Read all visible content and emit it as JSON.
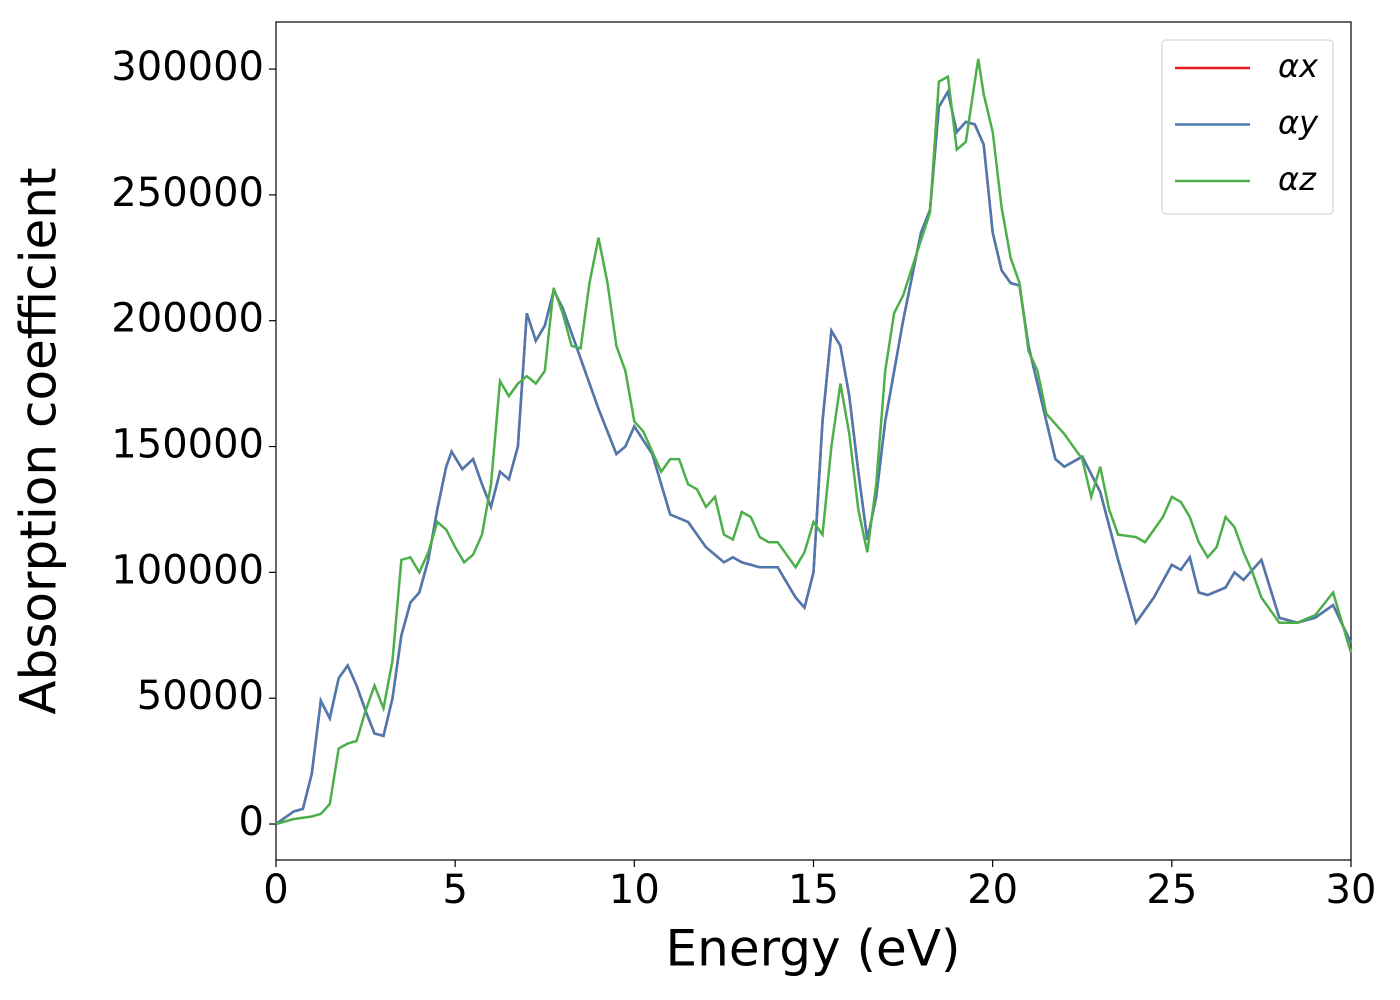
{
  "chart_data": {
    "type": "line",
    "xlabel": "Energy (eV)",
    "ylabel": "Absorption coefficient",
    "xlim": [
      0,
      30
    ],
    "xticks": [
      0,
      5,
      10,
      15,
      20,
      25,
      30
    ],
    "ylim": [
      -14300,
      318700
    ],
    "yticks": [
      0,
      50000,
      100000,
      150000,
      200000,
      250000,
      300000
    ],
    "legend": "upper right",
    "series": [
      {
        "name": "αx",
        "color": "#e41a1c",
        "x": [
          0,
          0.5,
          0.75,
          1.0,
          1.25,
          1.5,
          1.75,
          2.0,
          2.25,
          2.5,
          2.75,
          3.0,
          3.25,
          3.5,
          3.75,
          4.0,
          4.25,
          4.5,
          4.75,
          4.9,
          5.2,
          5.5,
          5.75,
          6.0,
          6.25,
          6.5,
          6.75,
          7.0,
          7.25,
          7.5,
          7.75,
          8.0,
          8.5,
          8.75,
          9.0,
          9.5,
          9.75,
          10.0,
          10.5,
          11.0,
          11.5,
          12.0,
          12.5,
          12.75,
          13.0,
          13.5,
          14.0,
          14.5,
          14.75,
          15.0,
          15.25,
          15.5,
          15.75,
          16.0,
          16.25,
          16.5,
          16.75,
          17.0,
          17.5,
          18.0,
          18.25,
          18.5,
          18.75,
          19.0,
          19.25,
          19.5,
          19.75,
          20.0,
          20.25,
          20.5,
          20.75,
          21.0,
          21.5,
          21.75,
          22.0,
          22.5,
          23.0,
          23.5,
          24.0,
          24.5,
          25.0,
          25.25,
          25.5,
          25.75,
          26.0,
          26.5,
          26.75,
          27.0,
          27.5,
          28.0,
          28.5,
          29.0,
          29.5,
          30.0
        ],
        "values": [
          0,
          5000,
          6000,
          20000,
          49000,
          42000,
          58000,
          63000,
          55000,
          45000,
          36000,
          35000,
          50000,
          75000,
          88000,
          92000,
          105000,
          125000,
          142000,
          148000,
          141000,
          145000,
          135000,
          126000,
          140000,
          137000,
          150000,
          203000,
          192000,
          198000,
          212000,
          205000,
          185000,
          175000,
          165000,
          147000,
          150000,
          158000,
          147000,
          123000,
          120000,
          110000,
          104000,
          106000,
          104000,
          102000,
          102000,
          90000,
          86000,
          100000,
          160000,
          196000,
          190000,
          170000,
          140000,
          113000,
          130000,
          160000,
          200000,
          235000,
          244000,
          285000,
          291000,
          275000,
          279000,
          278000,
          270000,
          235000,
          220000,
          215000,
          214000,
          190000,
          160000,
          145000,
          142000,
          146000,
          132000,
          105000,
          80000,
          90000,
          103000,
          101000,
          106000,
          92000,
          91000,
          94000,
          100000,
          97000,
          105000,
          82000,
          80000,
          82000,
          87000,
          72000
        ]
      },
      {
        "name": "αy",
        "color": "#4a7ab0",
        "x": [
          0,
          0.5,
          0.75,
          1.0,
          1.25,
          1.5,
          1.75,
          2.0,
          2.25,
          2.5,
          2.75,
          3.0,
          3.25,
          3.5,
          3.75,
          4.0,
          4.25,
          4.5,
          4.75,
          4.9,
          5.2,
          5.5,
          5.75,
          6.0,
          6.25,
          6.5,
          6.75,
          7.0,
          7.25,
          7.5,
          7.75,
          8.0,
          8.5,
          8.75,
          9.0,
          9.5,
          9.75,
          10.0,
          10.5,
          11.0,
          11.5,
          12.0,
          12.5,
          12.75,
          13.0,
          13.5,
          14.0,
          14.5,
          14.75,
          15.0,
          15.25,
          15.5,
          15.75,
          16.0,
          16.25,
          16.5,
          16.75,
          17.0,
          17.5,
          18.0,
          18.25,
          18.5,
          18.75,
          19.0,
          19.25,
          19.5,
          19.75,
          20.0,
          20.25,
          20.5,
          20.75,
          21.0,
          21.5,
          21.75,
          22.0,
          22.5,
          23.0,
          23.5,
          24.0,
          24.5,
          25.0,
          25.25,
          25.5,
          25.75,
          26.0,
          26.5,
          26.75,
          27.0,
          27.5,
          28.0,
          28.5,
          29.0,
          29.5,
          30.0
        ],
        "values": [
          0,
          5000,
          6000,
          20000,
          49000,
          42000,
          58000,
          63000,
          55000,
          45000,
          36000,
          35000,
          50000,
          75000,
          88000,
          92000,
          105000,
          125000,
          142000,
          148000,
          141000,
          145000,
          135000,
          126000,
          140000,
          137000,
          150000,
          203000,
          192000,
          198000,
          212000,
          205000,
          185000,
          175000,
          165000,
          147000,
          150000,
          158000,
          147000,
          123000,
          120000,
          110000,
          104000,
          106000,
          104000,
          102000,
          102000,
          90000,
          86000,
          100000,
          160000,
          196000,
          190000,
          170000,
          140000,
          113000,
          130000,
          160000,
          200000,
          235000,
          244000,
          285000,
          291000,
          275000,
          279000,
          278000,
          270000,
          235000,
          220000,
          215000,
          214000,
          190000,
          160000,
          145000,
          142000,
          146000,
          132000,
          105000,
          80000,
          90000,
          103000,
          101000,
          106000,
          92000,
          91000,
          94000,
          100000,
          97000,
          105000,
          82000,
          80000,
          82000,
          87000,
          72000
        ]
      },
      {
        "name": "αz",
        "color": "#4daf4a",
        "x": [
          0,
          0.5,
          1.0,
          1.25,
          1.5,
          1.75,
          2.0,
          2.25,
          2.5,
          2.75,
          3.0,
          3.25,
          3.5,
          3.75,
          4.0,
          4.25,
          4.5,
          4.75,
          5.0,
          5.25,
          5.5,
          5.75,
          6.0,
          6.25,
          6.5,
          6.75,
          7.0,
          7.25,
          7.5,
          7.75,
          8.0,
          8.25,
          8.5,
          8.75,
          9.0,
          9.25,
          9.5,
          9.75,
          10.0,
          10.25,
          10.5,
          10.75,
          11.0,
          11.25,
          11.5,
          11.75,
          12.0,
          12.25,
          12.5,
          12.75,
          13.0,
          13.25,
          13.5,
          13.75,
          14.0,
          14.5,
          14.75,
          15.0,
          15.25,
          15.5,
          15.75,
          16.0,
          16.25,
          16.5,
          16.75,
          17.0,
          17.25,
          17.5,
          18.0,
          18.25,
          18.5,
          18.75,
          19.0,
          19.25,
          19.5,
          19.6,
          19.75,
          20.0,
          20.25,
          20.5,
          20.75,
          21.0,
          21.25,
          21.5,
          22.0,
          22.5,
          22.75,
          23.0,
          23.25,
          23.5,
          24.0,
          24.25,
          24.75,
          25.0,
          25.25,
          25.5,
          25.75,
          26.0,
          26.25,
          26.5,
          26.75,
          27.0,
          27.25,
          27.5,
          28.0,
          28.5,
          29.0,
          29.5,
          30.0
        ],
        "values": [
          0,
          2000,
          3000,
          4000,
          8000,
          30000,
          32000,
          33000,
          45000,
          55000,
          46000,
          65000,
          105000,
          106000,
          100000,
          108000,
          120000,
          117000,
          110000,
          104000,
          107000,
          115000,
          135000,
          176000,
          170000,
          175000,
          178000,
          175000,
          180000,
          213000,
          203000,
          190000,
          189000,
          215000,
          233000,
          215000,
          190000,
          180000,
          160000,
          156000,
          148000,
          140000,
          145000,
          145000,
          135000,
          133000,
          126000,
          130000,
          115000,
          113000,
          124000,
          122000,
          114000,
          112000,
          112000,
          102000,
          108000,
          120000,
          115000,
          150000,
          175000,
          155000,
          125000,
          108000,
          135000,
          180000,
          203000,
          210000,
          232000,
          243000,
          295000,
          297000,
          268000,
          271000,
          295000,
          304000,
          290000,
          275000,
          245000,
          225000,
          215000,
          188000,
          180000,
          163000,
          155000,
          145000,
          130000,
          142000,
          125000,
          115000,
          114000,
          112000,
          122000,
          130000,
          128000,
          122000,
          112000,
          106000,
          110000,
          122000,
          118000,
          108000,
          100000,
          90000,
          80000,
          80000,
          83000,
          92000,
          68000
        ]
      }
    ]
  }
}
